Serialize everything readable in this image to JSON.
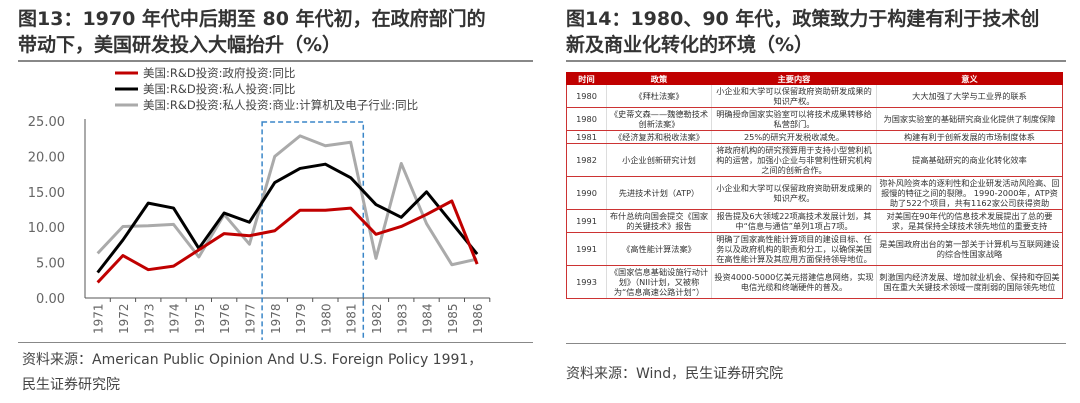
{
  "left": {
    "title_line1": "图13：1970 年代中后期至 80 年代初，在政府部门的",
    "title_line2": "带动下，美国研发投入大幅抬升（%）",
    "source_line1": "资料来源：American Public Opinion And U.S. Foreign Policy 1991，",
    "source_line2": "民生证券研究院"
  },
  "right": {
    "title_line1": "图14：1980、90 年代，政策致力于构建有利于技术创",
    "title_line2": "新及商业化转化的环境（%）",
    "source": "资料来源：Wind，民生证券研究院",
    "table": {
      "headers": [
        "时间",
        "政策",
        "主要内容",
        "意义"
      ],
      "rows": [
        [
          "1980",
          "《拜杜法案》",
          "小企业和大学可以保留政府资助研发成果的知识产权。",
          "大大加强了大学与工业界的联系"
        ],
        [
          "1980",
          "《史蒂文森——魏德勒技术创新法案》",
          "明确授命国家实验室可以将技术成果转移给私营部门。",
          "为国家实验室的基础研究商业化提供了制度保障"
        ],
        [
          "1981",
          "《经济复苏和税收法案》",
          "25%的研究开发税收减免。",
          "构建有利于创新发展的市场制度体系"
        ],
        [
          "1982",
          "小企业创新研究计划",
          "将政府机构的研究预算用于支持小型营利机构的运营，加强小企业与非营利性研究机构之间的创新合作。",
          "提高基础研究的商业化转化效率"
        ],
        [
          "1990",
          "先进技术计划（ATP）",
          "小企业和大学可以保留政府资助研发成果的知识产权。",
          "弥补风险资本的逐利性和企业研发活动风险高、回报慢的特征之间的裂隙。 1990-2000年，ATP资助了522个项目，共有1162家公司获得资助"
        ],
        [
          "1991",
          "布什总统向国会提交《国家的关键技术》报告",
          "报告提及6大领域22项高技术发展计划，其中“信息与通信”单列1项占7项。",
          "对美国在90年代的信息技术发展提出了总的要求，是其保持全球技术领先地位的重要支持"
        ],
        [
          "1991",
          "《高性能计算法案》",
          "明确了国家高性能计算项目的建设目标、任务以及政府机构的职责和分工，以确保美国在高性能计算及其应用方面保持领导地位。",
          "是美国政府出台的第一部关于计算机与互联网建设的综合性国家战略"
        ],
        [
          "1993",
          "《国家信息基础设施行动计划》（NII计划，又被称为“信息高速公路计划”）",
          "投资4000-5000亿美元搭建信息网络，实现电信光缆和终端硬件的普及。",
          "刺激国内经济发展、增加就业机会、保持和夺回美国在重大关键技术领域一度削弱的国际领先地位"
        ]
      ]
    }
  },
  "chart_data": {
    "type": "line",
    "categories": [
      "1971",
      "1972",
      "1973",
      "1974",
      "1975",
      "1976",
      "1977",
      "1978",
      "1979",
      "1980",
      "1981",
      "1982",
      "1983",
      "1984",
      "1985",
      "1986"
    ],
    "ylim": [
      0,
      25
    ],
    "yticks": [
      "0.00",
      "5.00",
      "10.00",
      "15.00",
      "20.00",
      "25.00"
    ],
    "legend": "top-left",
    "grid": false,
    "highlight": [
      "1978",
      "1981"
    ],
    "series": [
      {
        "name": "美国:R&D投资:政府投资:同比",
        "color": "#c00000",
        "values": [
          2.2,
          6.0,
          4.0,
          4.5,
          6.8,
          9.1,
          8.8,
          9.5,
          12.4,
          12.4,
          12.7,
          9.0,
          10.1,
          11.8,
          13.7,
          4.8
        ]
      },
      {
        "name": "美国:R&D投资:私人投资:同比",
        "color": "#000000",
        "values": [
          3.6,
          8.2,
          13.4,
          12.7,
          7.0,
          12.0,
          10.7,
          16.3,
          18.3,
          18.9,
          17.0,
          13.2,
          11.4,
          15.0,
          10.6,
          6.2
        ]
      },
      {
        "name": "美国:R&D投资:私人投资:商业:计算机及电子行业:同比",
        "color": "#aaaaaa",
        "values": [
          6.3,
          10.1,
          10.2,
          10.4,
          5.8,
          11.8,
          7.6,
          20.0,
          22.9,
          21.5,
          22.0,
          5.6,
          19.0,
          10.5,
          4.7,
          5.5
        ]
      }
    ]
  }
}
